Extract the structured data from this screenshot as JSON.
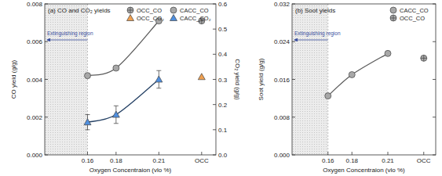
{
  "chart_data": [
    {
      "type": "scatter",
      "title": "(a) CO and CO₂ yields",
      "x_label": "Oxygen Concentraion (vlo %)",
      "y_label": "CO yield (g/g)",
      "y2_label": "CO₂ yield (g/g)",
      "xlim": [
        0.13,
        0.25
      ],
      "xticks": [
        0.16,
        0.18,
        0.21,
        {
          "value": 0.24,
          "label": "OCC"
        }
      ],
      "ylim": [
        0,
        0.008
      ],
      "yticks": [
        {
          "value": 0,
          "label": "0.000"
        },
        {
          "value": 0.002,
          "label": "0.002"
        },
        {
          "value": 0.004,
          "label": "0.004"
        },
        {
          "value": 0.006,
          "label": "0.006"
        },
        {
          "value": 0.008,
          "label": "0.008"
        }
      ],
      "y2lim": [
        0,
        0.6
      ],
      "y2ticks": [
        {
          "value": 0,
          "label": "0.0"
        },
        0.1,
        0.2,
        0.3,
        0.4,
        0.5,
        0.6
      ],
      "legend": "upper right",
      "grid": false,
      "annotations": [
        {
          "text": "Extinguishing region",
          "region": [
            0.13,
            0.16
          ]
        }
      ],
      "series": [
        {
          "name": "OCC_CO",
          "color": "#a8a8a8",
          "marker": "circle-cross",
          "x": [
            0.24
          ],
          "values": [
            0.0071
          ]
        },
        {
          "name": "OCC_CO₂",
          "color": "#f0a050",
          "marker": "triangle",
          "axis": "y2",
          "x": [
            0.24
          ],
          "values": [
            0.31
          ]
        },
        {
          "name": "CACC_CO",
          "color": "#a8a8a8",
          "marker": "circle",
          "line_style": "solid",
          "x": [
            0.16,
            0.18,
            0.21
          ],
          "values": [
            0.0042,
            0.0046,
            0.0071
          ]
        },
        {
          "name": "CACC_CO₂",
          "color": "#4f8fdf",
          "marker": "triangle",
          "line_style": "solid",
          "axis": "y2",
          "x": [
            0.16,
            0.18,
            0.21
          ],
          "values": [
            0.13,
            0.16,
            0.3
          ],
          "errors": [
            0.03,
            0.035,
            0.035
          ]
        }
      ]
    },
    {
      "type": "scatter",
      "title": "(b) Soot yields",
      "x_label": "Oxygen Concentraion (vlo %)",
      "y_label": "Soot yield (g/g)",
      "xlim": [
        0.13,
        0.25
      ],
      "xticks": [
        0.16,
        0.18,
        0.21,
        {
          "value": 0.24,
          "label": "OCC"
        }
      ],
      "ylim": [
        0,
        0.032
      ],
      "yticks": [
        {
          "value": 0,
          "label": "0.000"
        },
        {
          "value": 0.008,
          "label": "0.008"
        },
        {
          "value": 0.016,
          "label": "0.016"
        },
        {
          "value": 0.024,
          "label": "0.024"
        },
        {
          "value": 0.032,
          "label": "0.032"
        }
      ],
      "legend": "upper right",
      "grid": false,
      "annotations": [
        {
          "text": "Extinguishing region",
          "region": [
            0.13,
            0.16
          ]
        }
      ],
      "series": [
        {
          "name": "CACC_CO",
          "color": "#a8a8a8",
          "marker": "circle",
          "line_style": "solid",
          "x": [
            0.16,
            0.18,
            0.21
          ],
          "values": [
            0.0125,
            0.017,
            0.0215
          ]
        },
        {
          "name": "OCC_CO",
          "color": "#a8a8a8",
          "marker": "circle-cross",
          "x": [
            0.24
          ],
          "values": [
            0.0205
          ]
        }
      ]
    }
  ]
}
